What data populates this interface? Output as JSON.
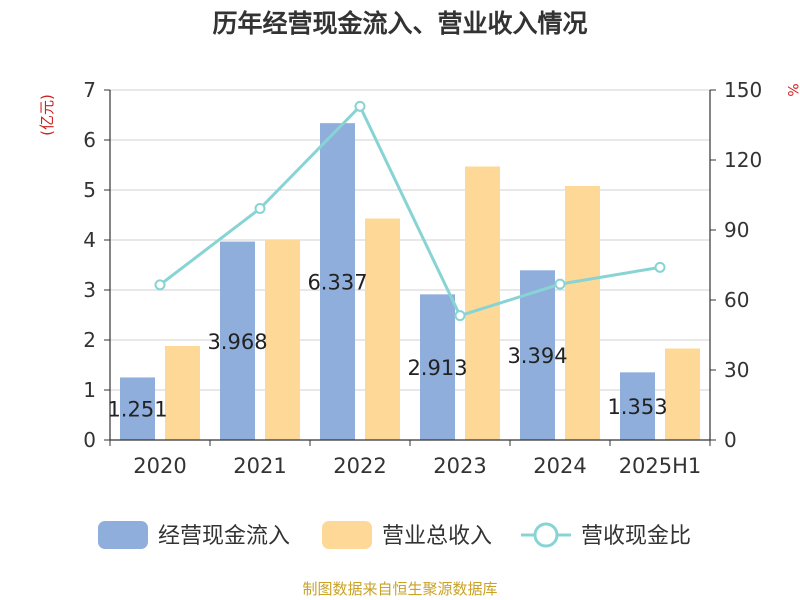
{
  "chart_data": {
    "type": "bar",
    "title": "历年经营现金流入、营业收入情况",
    "categories": [
      "2020",
      "2021",
      "2022",
      "2023",
      "2024",
      "2025H1"
    ],
    "y_left": {
      "unit": "(亿元)",
      "range": [
        0,
        7
      ],
      "ticks": [
        "0",
        "1",
        "2",
        "3",
        "4",
        "5",
        "6",
        "7"
      ]
    },
    "y_right": {
      "unit": "%",
      "range": [
        0,
        150
      ],
      "ticks": [
        "0",
        "30",
        "60",
        "90",
        "120",
        "150"
      ]
    },
    "grid": true,
    "legend_position": "bottom",
    "series": [
      {
        "name": "经营现金流入",
        "type": "bar",
        "axis": "left",
        "color": "#8FAEDB",
        "values": [
          1.251,
          3.968,
          6.337,
          2.913,
          3.394,
          1.353
        ],
        "labels": [
          "1.251",
          "3.968",
          "6.337",
          "2.913",
          "3.394",
          "1.353"
        ]
      },
      {
        "name": "营业总收入",
        "type": "bar",
        "axis": "left",
        "color": "#FDD897",
        "values": [
          1.88,
          4.0,
          4.43,
          5.47,
          5.08,
          1.83
        ]
      },
      {
        "name": "营收现金比",
        "type": "line",
        "axis": "right",
        "color": "#88D4D5",
        "values": [
          66.5,
          99.2,
          143.0,
          53.3,
          66.8,
          74.0
        ]
      }
    ]
  },
  "source": "制图数据来自恒生聚源数据库"
}
